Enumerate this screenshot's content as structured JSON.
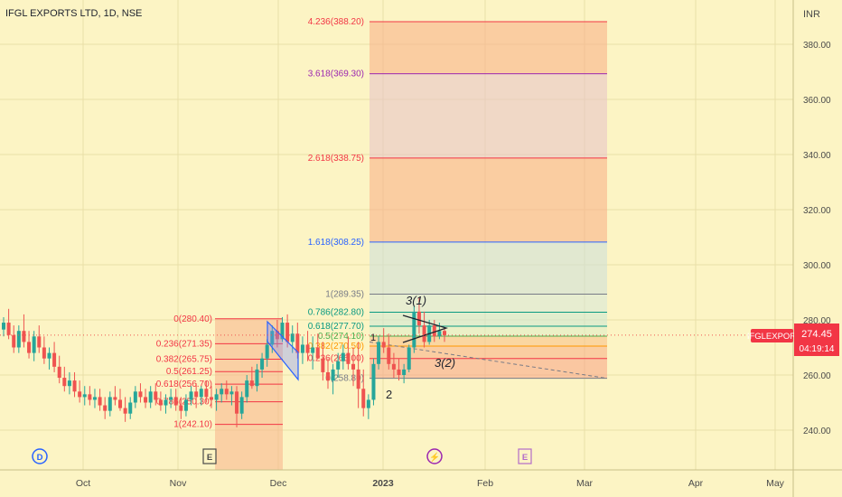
{
  "title": "IFGL EXPORTS LTD, 1D, NSE",
  "currency": "INR",
  "colors": {
    "background": "#fcf4c4",
    "up": "#26a69a",
    "down": "#ef5350",
    "fib_blue": "#2962ff",
    "accent": "#f23645"
  },
  "chart_data": {
    "type": "candlestick",
    "title": "IFGL EXPORTS LTD, 1D, NSE",
    "ylabel": "INR",
    "ylim": [
      225,
      392
    ],
    "y_ticks": [
      "240.00",
      "260.00",
      "280.00",
      "300.00",
      "320.00",
      "340.00",
      "360.00",
      "380.00"
    ],
    "x_tick_labels": [
      "Oct",
      "Nov",
      "Dec",
      "2023",
      "Feb",
      "Mar",
      "Apr",
      "May"
    ],
    "last_price": 274.45,
    "countdown": "04:19:14",
    "symbol_tag": "IFGLEXPOR",
    "candles": [
      [
        276.5,
        281,
        274,
        279
      ],
      [
        279,
        284,
        273,
        274.5
      ],
      [
        274.5,
        278,
        268,
        270
      ],
      [
        270,
        278,
        268,
        276
      ],
      [
        276,
        282,
        270,
        272
      ],
      [
        272,
        276,
        266,
        268
      ],
      [
        268,
        276,
        265,
        274
      ],
      [
        274,
        278,
        268,
        270
      ],
      [
        270,
        274,
        264,
        266
      ],
      [
        266,
        270,
        262,
        268
      ],
      [
        268,
        272,
        261,
        263
      ],
      [
        263,
        267,
        257,
        259
      ],
      [
        259,
        263,
        254,
        256
      ],
      [
        256,
        261,
        253,
        258
      ],
      [
        258,
        261,
        252,
        254
      ],
      [
        254,
        258,
        250,
        252
      ],
      [
        252,
        256,
        249,
        253
      ],
      [
        253,
        256,
        249,
        251
      ],
      [
        251,
        255,
        248,
        252
      ],
      [
        252,
        255,
        247,
        249
      ],
      [
        249,
        252,
        244,
        247
      ],
      [
        247,
        254,
        245,
        252
      ],
      [
        252,
        256,
        249,
        251
      ],
      [
        251,
        255,
        247,
        248
      ],
      [
        248,
        252,
        243,
        246
      ],
      [
        246,
        252,
        244,
        250
      ],
      [
        250,
        256,
        248,
        254
      ],
      [
        254,
        257,
        250,
        252
      ],
      [
        252,
        255,
        248,
        250
      ],
      [
        250,
        256,
        248,
        254
      ],
      [
        254,
        257,
        249,
        251
      ],
      [
        251,
        254,
        247,
        249
      ],
      [
        249,
        253,
        246,
        251
      ],
      [
        251,
        255,
        248,
        252
      ],
      [
        252,
        255,
        247,
        249
      ],
      [
        249,
        252,
        244,
        247
      ],
      [
        247,
        253,
        245,
        251
      ],
      [
        251,
        256,
        249,
        254
      ],
      [
        254,
        257,
        248,
        252
      ],
      [
        252,
        256,
        249,
        255
      ],
      [
        255,
        258,
        250,
        252
      ],
      [
        252,
        256,
        248,
        251
      ],
      [
        251,
        255,
        247,
        253
      ],
      [
        253,
        257,
        250,
        255
      ],
      [
        255,
        258,
        251,
        253
      ],
      [
        253,
        256,
        249,
        254
      ],
      [
        254,
        256,
        241,
        246
      ],
      [
        246,
        254,
        244,
        252
      ],
      [
        252,
        260,
        250,
        258
      ],
      [
        258,
        263,
        255,
        256
      ],
      [
        256,
        264,
        254,
        262
      ],
      [
        262,
        268,
        259,
        266
      ],
      [
        266,
        273,
        263,
        271
      ],
      [
        271,
        278,
        268,
        276
      ],
      [
        276,
        280,
        270,
        273
      ],
      [
        273,
        281,
        272,
        279
      ],
      [
        279,
        282,
        270,
        272
      ],
      [
        272,
        278,
        268,
        275
      ],
      [
        275,
        279,
        266,
        268
      ],
      [
        268,
        274,
        264,
        271
      ],
      [
        271,
        276,
        265,
        268
      ],
      [
        268,
        274,
        262,
        270
      ],
      [
        270,
        275,
        266,
        266
      ],
      [
        266,
        272,
        258,
        261
      ],
      [
        261,
        266,
        255,
        258
      ],
      [
        258,
        264,
        253,
        262
      ],
      [
        262,
        268,
        259,
        265
      ],
      [
        265,
        271,
        262,
        268
      ],
      [
        268,
        274,
        262,
        264
      ],
      [
        264,
        270,
        256,
        262
      ],
      [
        262,
        272,
        248,
        255
      ],
      [
        255,
        262,
        245,
        248
      ],
      [
        248,
        253,
        244,
        251
      ],
      [
        251,
        266,
        249,
        264
      ],
      [
        264,
        274,
        262,
        272
      ],
      [
        272,
        277,
        268,
        270
      ],
      [
        270,
        275,
        262,
        264
      ],
      [
        264,
        268,
        259,
        262
      ],
      [
        262,
        266,
        258,
        260
      ],
      [
        260,
        264,
        257,
        262
      ],
      [
        262,
        271,
        261,
        270
      ],
      [
        270,
        285,
        268,
        283
      ],
      [
        283,
        288,
        275,
        278
      ],
      [
        278,
        283,
        270,
        272
      ],
      [
        272,
        280,
        271,
        278
      ],
      [
        278,
        280,
        272,
        274
      ],
      [
        274,
        279,
        273,
        276
      ],
      [
        276,
        277,
        272,
        274.45
      ]
    ],
    "fib_left": {
      "levels": [
        {
          "ratio": "0",
          "price": 280.4,
          "label": "0(280.40)"
        },
        {
          "ratio": "0.236",
          "price": 271.35,
          "label": "0.236(271.35)"
        },
        {
          "ratio": "0.382",
          "price": 265.75,
          "label": "0.382(265.75)"
        },
        {
          "ratio": "0.5",
          "price": 261.25,
          "label": "0.5(261.25)"
        },
        {
          "ratio": "0.618",
          "price": 256.7,
          "label": "0.618(256.70)"
        },
        {
          "ratio": "0.786",
          "price": 250.3,
          "label": "0.786(250.30)"
        },
        {
          "ratio": "1",
          "price": 242.1,
          "label": "1(242.10)"
        }
      ]
    },
    "fib_right": {
      "levels": [
        {
          "price": 388.2,
          "label": "4.236(388.20)",
          "color": "#f23645"
        },
        {
          "price": 369.3,
          "label": "3.618(369.30)",
          "color": "#9c27b0"
        },
        {
          "price": 338.75,
          "label": "2.618(338.75)",
          "color": "#f23645"
        },
        {
          "price": 308.25,
          "label": "1.618(308.25)",
          "color": "#2962ff"
        },
        {
          "price": 289.35,
          "label": "1(289.35)",
          "color": "#787b86"
        },
        {
          "price": 282.8,
          "label": "0.786(282.80)",
          "color": "#089981"
        },
        {
          "price": 277.7,
          "label": "0.618(277.70)",
          "color": "#089981"
        },
        {
          "price": 274.1,
          "label": "0.5(274.10)",
          "color": "#4caf50"
        },
        {
          "price": 270.5,
          "label": "0.382(270.50)",
          "color": "#ff9800"
        },
        {
          "price": 266.0,
          "label": "0.236(266.00)",
          "color": "#f23645"
        },
        {
          "price": 258.8,
          "label": "0(258.80)",
          "color": "#787b86"
        }
      ]
    },
    "annotations": {
      "wave_3_1": "3(1)",
      "wave_3_2": "3(2)",
      "wave_2": "2",
      "wave_1": "1"
    },
    "event_markers": [
      {
        "name": "dividend-marker",
        "text": "D"
      },
      {
        "name": "earnings-marker-1",
        "text": "E"
      },
      {
        "name": "split-marker",
        "text": "⚡"
      },
      {
        "name": "earnings-marker-2",
        "text": "E"
      }
    ]
  }
}
